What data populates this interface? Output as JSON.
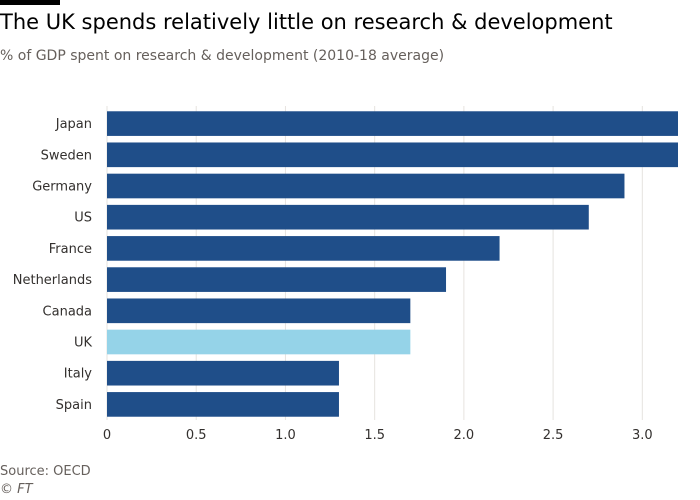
{
  "chart_data": {
    "type": "bar",
    "orientation": "horizontal",
    "title": "The UK spends relatively little on research & development",
    "subtitle": "% of GDP spent on research & development (2010-18 average)",
    "categories": [
      "Japan",
      "Sweden",
      "Germany",
      "US",
      "France",
      "Netherlands",
      "Canada",
      "UK",
      "Italy",
      "Spain"
    ],
    "values": [
      3.2,
      3.2,
      2.9,
      2.7,
      2.2,
      1.9,
      1.7,
      1.7,
      1.3,
      1.3
    ],
    "highlight": "UK",
    "xlim": [
      0,
      3.2
    ],
    "xticks": [
      "0",
      "0.5",
      "1.0",
      "1.5",
      "2.0",
      "2.5",
      "3.0"
    ],
    "colors": {
      "bar": "#1f4e89",
      "highlight": "#95d3e8",
      "grid": "#e6e3df"
    },
    "grid": true
  },
  "footer": {
    "source": "Source: OECD",
    "credit": "© FT"
  }
}
